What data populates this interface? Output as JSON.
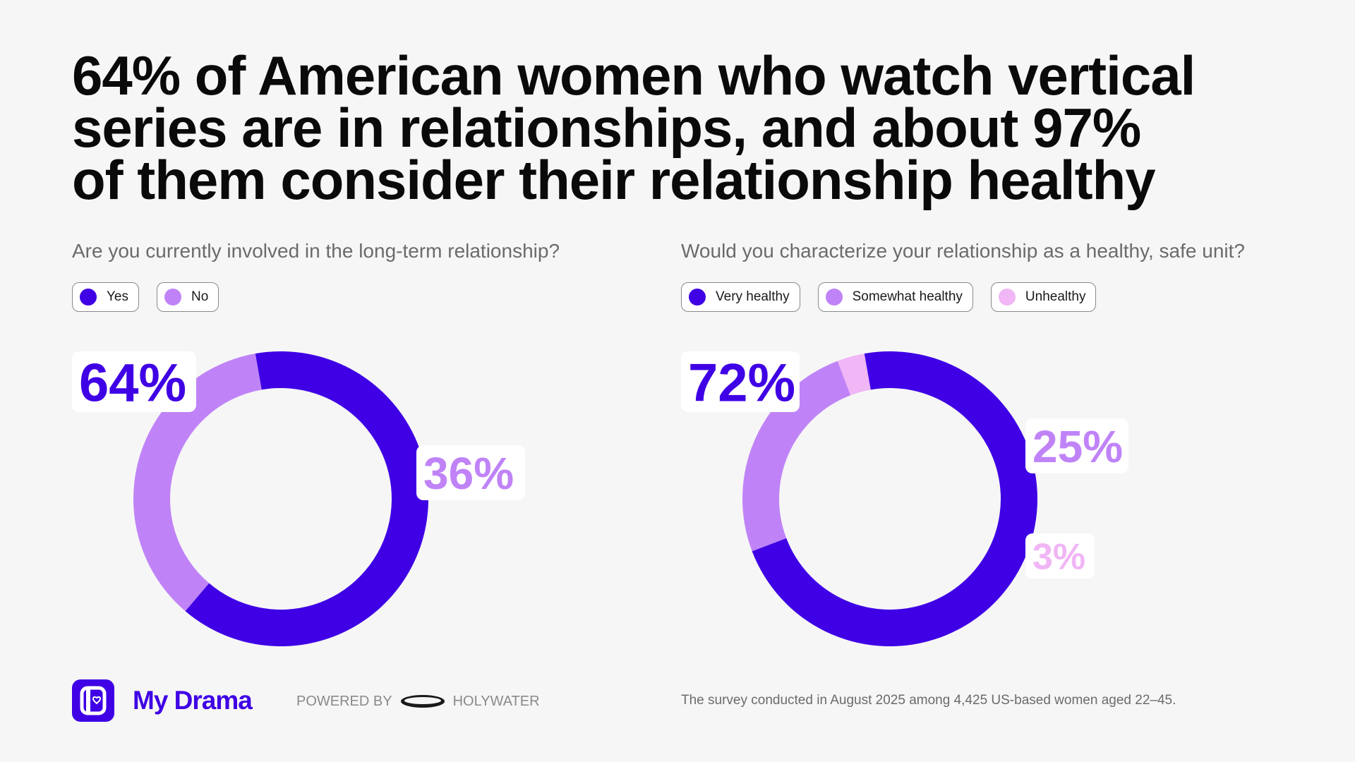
{
  "title_lines": [
    "64% of American women who watch vertical",
    "series are in relationships, and about 97%",
    "of them consider their relationship healthy"
  ],
  "colors": {
    "primary": "#3f00e5",
    "secondary": "#c083f7",
    "tertiary": "#f0b6f5",
    "brand": "#3f00e5"
  },
  "left": {
    "question": "Are you currently involved in the long-term relationship?",
    "legend": [
      {
        "label": "Yes",
        "color": "#3f00e5"
      },
      {
        "label": "No",
        "color": "#c083f7"
      }
    ]
  },
  "right": {
    "question": "Would you characterize your relationship as a healthy, safe unit?",
    "legend": [
      {
        "label": "Very healthy",
        "color": "#3f00e5"
      },
      {
        "label": "Somewhat healthy",
        "color": "#c083f7"
      },
      {
        "label": "Unhealthy",
        "color": "#f0b6f5"
      }
    ]
  },
  "chart_data": [
    {
      "type": "pie",
      "title": "Are you currently involved in the long-term relationship?",
      "categories": [
        "Yes",
        "No"
      ],
      "values": [
        64,
        36
      ],
      "labels": [
        "64%",
        "36%"
      ],
      "colors": [
        "#3f00e5",
        "#c083f7"
      ]
    },
    {
      "type": "pie",
      "title": "Would you characterize your relationship as a healthy, safe unit?",
      "categories": [
        "Very healthy",
        "Somewhat healthy",
        "Unhealthy"
      ],
      "values": [
        72,
        25,
        3
      ],
      "labels": [
        "72%",
        "25%",
        "3%"
      ],
      "colors": [
        "#3f00e5",
        "#c083f7",
        "#f0b6f5"
      ]
    }
  ],
  "footer": {
    "brand": "My Drama",
    "powered_by": "POWERED BY",
    "partner": "HOLYWATER",
    "note": "The survey conducted in August 2025 among 4,425 US-based women aged 22–45."
  }
}
